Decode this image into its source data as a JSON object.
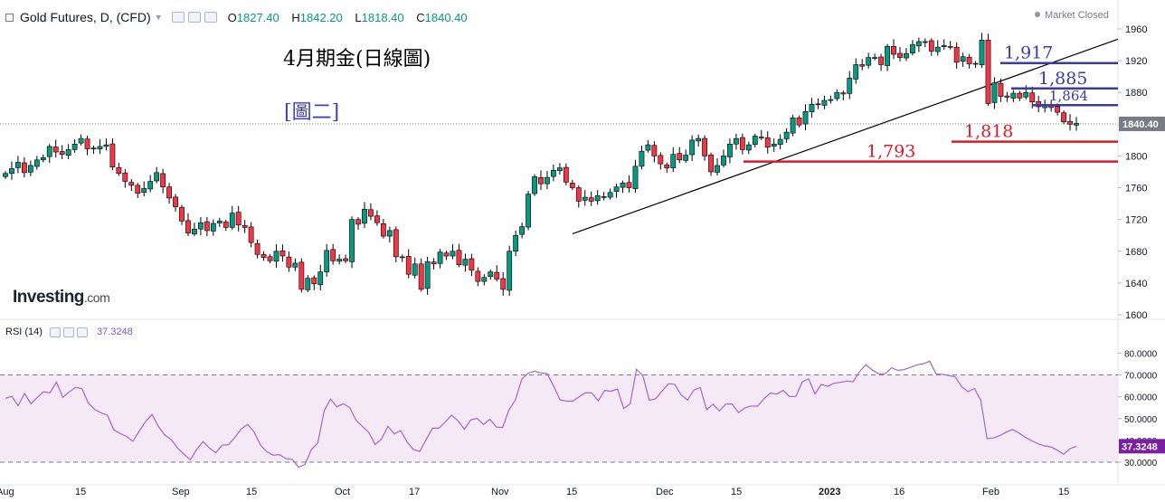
{
  "header": {
    "symbol": "Gold Futures, D, (CFD)",
    "open_label": "O",
    "open": "1827.40",
    "high_label": "H",
    "high": "1842.20",
    "low_label": "L",
    "low": "1818.40",
    "close_label": "C",
    "close": "1840.40",
    "market_status": "Market Closed"
  },
  "logo": {
    "brand": "Investing",
    "suffix": ".com"
  },
  "annotations": {
    "title": "4月期金(日線圖)",
    "subtitle": "[圖二]"
  },
  "rsi_header": {
    "label": "RSI (14)",
    "value": "37.3248"
  },
  "colors": {
    "up": "#089981",
    "down": "#f23645",
    "rsi": "#a366c9",
    "level_blue": "#3a3aaa",
    "level_red": "#d81b28",
    "price_tag": "#787b86",
    "rsi_tag": "#7b1fa2"
  },
  "chart_data": [
    {
      "type": "candlestick",
      "title": "Gold Futures, D, (CFD)",
      "y_ticks": [
        1600,
        1640,
        1680,
        1720,
        1760,
        1800,
        1840,
        1880,
        1920,
        1960
      ],
      "ylim": [
        1600,
        1982
      ],
      "x_tick_labels": [
        "Aug",
        "15",
        "Sep",
        "15",
        "Oct",
        "17",
        "Nov",
        "15",
        "Dec",
        "15",
        "2023",
        "16",
        "Feb",
        "15"
      ],
      "last_price": "1840.40",
      "closes": [
        1778,
        1784,
        1792,
        1779,
        1788,
        1795,
        1798,
        1812,
        1805,
        1802,
        1808,
        1815,
        1822,
        1809,
        1810,
        1812,
        1814,
        1786,
        1778,
        1768,
        1763,
        1753,
        1759,
        1768,
        1779,
        1761,
        1747,
        1736,
        1718,
        1703,
        1708,
        1716,
        1706,
        1715,
        1718,
        1710,
        1728,
        1713,
        1710,
        1691,
        1676,
        1672,
        1668,
        1680,
        1674,
        1660,
        1665,
        1632,
        1646,
        1639,
        1654,
        1681,
        1668,
        1670,
        1668,
        1720,
        1714,
        1733,
        1724,
        1716,
        1699,
        1706,
        1673,
        1673,
        1651,
        1664,
        1632,
        1667,
        1664,
        1679,
        1674,
        1680,
        1663,
        1670,
        1656,
        1642,
        1647,
        1654,
        1645,
        1632,
        1680,
        1700,
        1711,
        1752,
        1774,
        1765,
        1773,
        1782,
        1785,
        1767,
        1760,
        1743,
        1748,
        1743,
        1750,
        1748,
        1754,
        1761,
        1766,
        1760,
        1787,
        1806,
        1814,
        1800,
        1790,
        1785,
        1802,
        1795,
        1801,
        1820,
        1822,
        1800,
        1780,
        1788,
        1800,
        1815,
        1822,
        1808,
        1814,
        1825,
        1823,
        1811,
        1815,
        1821,
        1830,
        1848,
        1839,
        1856,
        1865,
        1865,
        1870,
        1871,
        1880,
        1878,
        1898,
        1915,
        1913,
        1924,
        1924,
        1915,
        1938,
        1928,
        1924,
        1929,
        1940,
        1944,
        1944,
        1932,
        1937,
        1939,
        1937,
        1918,
        1925,
        1916,
        1916,
        1946,
        1866,
        1892,
        1875,
        1874,
        1879,
        1873,
        1880,
        1868,
        1862,
        1865,
        1861,
        1855,
        1843,
        1840,
        1841
      ],
      "support_resistance_labels": [
        "1,917",
        "1,885",
        "1,864",
        "1,818",
        "1,793"
      ],
      "support_resistance_values": [
        1917,
        1885,
        1864,
        1818,
        1793
      ],
      "trendline": {
        "from": [
          "Sep 28",
          1702
        ],
        "to": [
          "Feb 22",
          1947
        ]
      }
    },
    {
      "type": "line",
      "title": "RSI (14)",
      "y_ticks": [
        "30.0000",
        "40.0000",
        "50.0000",
        "60.0000",
        "70.0000",
        "80.0000"
      ],
      "ylim": [
        25,
        82
      ],
      "overbought": 70,
      "oversold": 30,
      "last_value": "37.3248",
      "values": [
        59.3,
        60.2,
        55.9,
        61.5,
        56.8,
        59.7,
        62.3,
        61.8,
        66.7,
        59.7,
        62.2,
        64.3,
        63.7,
        57.1,
        54.2,
        52.6,
        51.5,
        44.8,
        43.1,
        41.8,
        39.6,
        44.3,
        48.6,
        51.9,
        46.4,
        42.4,
        40.4,
        36.5,
        33.7,
        31.1,
        35.8,
        39.4,
        36.5,
        34.3,
        37.8,
        38.1,
        41.4,
        45.3,
        47.3,
        43.9,
        37.9,
        34.8,
        33.2,
        33.5,
        31.6,
        31.3,
        27.7,
        29.0,
        35.8,
        38.8,
        53.5,
        58.9,
        55.4,
        56.8,
        55.1,
        49.2,
        46.4,
        43.7,
        38.1,
        40.6,
        46.4,
        43.0,
        44.5,
        39.3,
        35.9,
        34.9,
        40.4,
        45.6,
        45.6,
        48.5,
        51.6,
        49.0,
        45.1,
        49.4,
        50.1,
        47.3,
        49.7,
        46.1,
        45.9,
        54.1,
        58.5,
        68.1,
        70.8,
        71.7,
        70.9,
        70.6,
        64.9,
        58.6,
        58.0,
        58.0,
        60.0,
        61.9,
        61.7,
        58.1,
        62.9,
        62.5,
        63.6,
        54.6,
        56.8,
        72.6,
        69.6,
        58.4,
        59.1,
        62.6,
        66.0,
        65.7,
        60.9,
        58.5,
        63.1,
        64.2,
        54.0,
        56.6,
        53.5,
        56.6,
        56.7,
        52.7,
        54.9,
        55.8,
        55.7,
        59.1,
        61.7,
        61.2,
        62.9,
        60.1,
        60.2,
        66.8,
        68.2,
        61.3,
        65.7,
        64.8,
        66.2,
        66.6,
        67.2,
        66.9,
        71.6,
        74.7,
        72.2,
        70.5,
        70.5,
        73.3,
        72.1,
        72.5,
        73.5,
        74.6,
        75.1,
        76.3,
        70.4,
        70.3,
        69.7,
        69.1,
        64.6,
        62.3,
        63.8,
        58.5,
        40.8,
        41.1,
        42.2,
        43.8,
        45.0,
        43.4,
        41.4,
        39.8,
        38.4,
        37.5,
        37.0,
        35.5,
        33.6,
        36.2,
        37.3
      ]
    }
  ]
}
